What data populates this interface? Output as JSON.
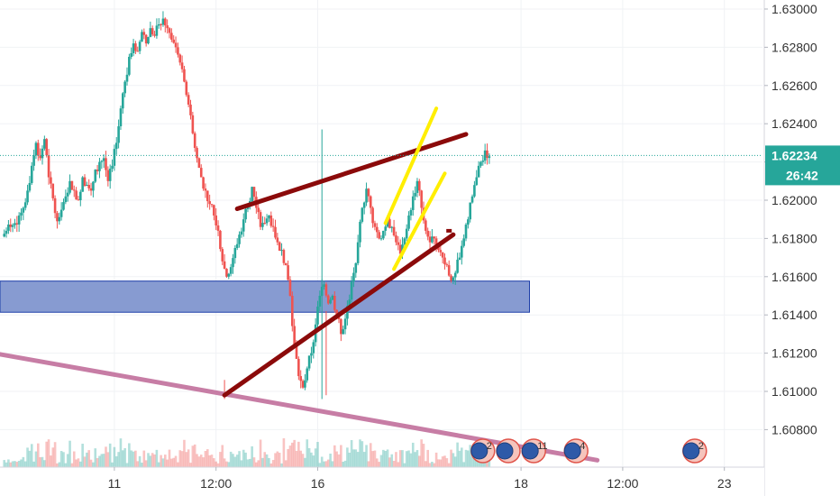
{
  "chart_data": {
    "type": "candlestick",
    "title": "",
    "xlabel": "",
    "ylabel": "",
    "ylim": [
      1.6068,
      1.6302
    ],
    "y_ticks": [
      "1.63000",
      "1.62800",
      "1.62600",
      "1.62400",
      "1.62200",
      "1.62000",
      "1.61800",
      "1.61600",
      "1.61400",
      "1.61200",
      "1.61000",
      "1.60800"
    ],
    "x_ticks": [
      {
        "label": "11",
        "t": 27
      },
      {
        "label": "12:00",
        "t": 39
      },
      {
        "label": "16",
        "t": 51
      },
      {
        "label": "18",
        "t": 75
      },
      {
        "label": "12:00",
        "t": 87
      },
      {
        "label": "23",
        "t": 99
      }
    ],
    "x_range": [
      13.5,
      103.5
    ],
    "current_price": {
      "value": "1.62234",
      "countdown": "26:42",
      "level": 1.62234
    },
    "colors": {
      "up": "#26a69a",
      "down": "#ef5350",
      "accent": "#26a69a"
    },
    "close_series": [
      1.6184,
      1.6186,
      1.6188,
      1.6192,
      1.6196,
      1.6205,
      1.6218,
      1.623,
      1.6222,
      1.6232,
      1.6212,
      1.6201,
      1.6189,
      1.6195,
      1.6202,
      1.621,
      1.6205,
      1.62,
      1.6212,
      1.6208,
      1.6205,
      1.6216,
      1.622,
      1.6222,
      1.621,
      1.6218,
      1.623,
      1.6248,
      1.6262,
      1.6275,
      1.6282,
      1.6278,
      1.6288,
      1.6282,
      1.629,
      1.6286,
      1.6292,
      1.6295,
      1.629,
      1.6284,
      1.628,
      1.6272,
      1.6262,
      1.625,
      1.6235,
      1.6222,
      1.6212,
      1.6205,
      1.6198,
      1.6192,
      1.6184,
      1.6168,
      1.616,
      1.6165,
      1.6175,
      1.6182,
      1.619,
      1.6198,
      1.6207,
      1.6196,
      1.6186,
      1.6188,
      1.6192,
      1.6186,
      1.6178,
      1.6174,
      1.6166,
      1.615,
      1.6124,
      1.6108,
      1.6102,
      1.6112,
      1.612,
      1.6135,
      1.615,
      1.6156,
      1.6146,
      1.615,
      1.614,
      1.613,
      1.6138,
      1.6148,
      1.6162,
      1.6178,
      1.6196,
      1.6206,
      1.6196,
      1.6186,
      1.618,
      1.6184,
      1.619,
      1.6186,
      1.6178,
      1.6172,
      1.618,
      1.6192,
      1.6202,
      1.621,
      1.6196,
      1.6184,
      1.6178,
      1.618,
      1.6174,
      1.617,
      1.6166,
      1.6158,
      1.6162,
      1.617,
      1.618,
      1.619,
      1.6202,
      1.6212,
      1.622,
      1.6226,
      1.6223
    ],
    "events": [
      {
        "label": "2",
        "t": 70.5
      },
      {
        "label": "",
        "t": 73.5
      },
      {
        "label": "11",
        "t": 76.5
      },
      {
        "label": "4",
        "t": 81.5
      },
      {
        "label": "2",
        "t": 95.5
      }
    ],
    "annotations": {
      "support_zone": {
        "t_start": 0,
        "t_end": 76,
        "price_top": 1.61577,
        "price_bottom": 1.61414,
        "fill": "#8196cf",
        "stroke": "#1e3fa8"
      },
      "rising_wedge_upper": {
        "from": [
          41.5,
          1.61955
        ],
        "to": [
          68.5,
          1.62345
        ],
        "color": "#8b0a0a"
      },
      "rising_wedge_lower": {
        "from": [
          40,
          1.6098
        ],
        "to": [
          67,
          1.6182
        ],
        "color": "#8b0a0a"
      },
      "channel_left": {
        "from": [
          59,
          1.6188
        ],
        "to": [
          65,
          1.6248
        ],
        "color": "#ffee00"
      },
      "channel_right": {
        "from": [
          60,
          1.6164
        ],
        "to": [
          66,
          1.6214
        ],
        "color": "#ffee00"
      },
      "long_trendline": {
        "from": [
          0,
          1.613
        ],
        "to": [
          84,
          1.6064
        ],
        "color": "#c77da5"
      },
      "marker": {
        "t": 66.5,
        "price": 1.6184,
        "color": "#8b0a0a"
      }
    }
  }
}
